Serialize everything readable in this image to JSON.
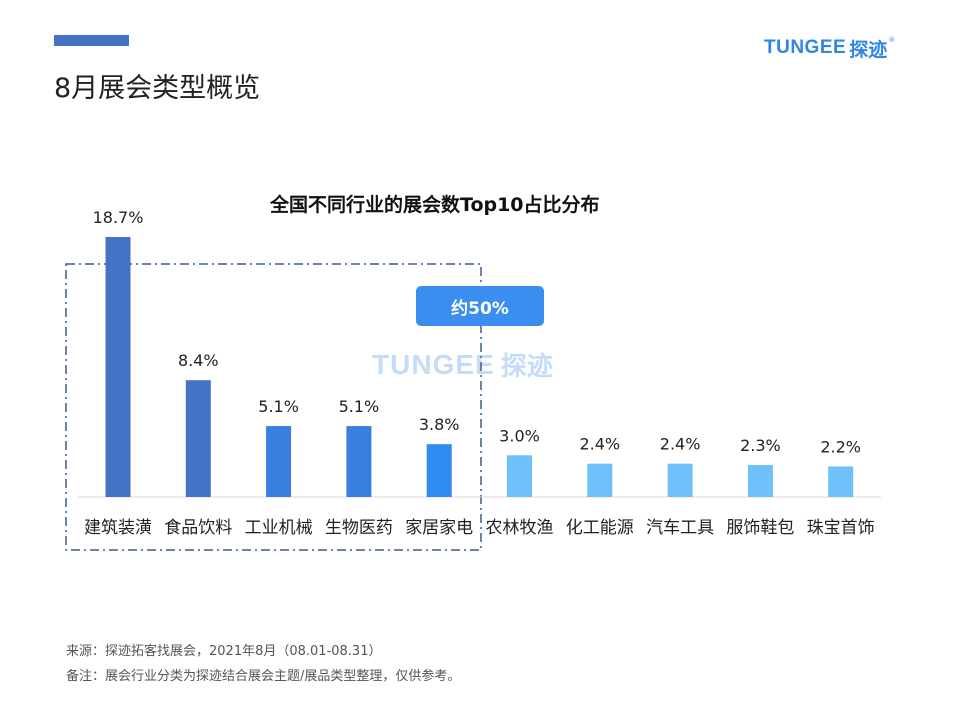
{
  "header": {
    "title": "8月展会类型概览",
    "logo_word": "TUNGEE",
    "logo_cn": "探迹",
    "logo_reg": "®"
  },
  "colors": {
    "accent_bar": "#4472c4",
    "bar_dark": "#4472c4",
    "bar_mid": "#3a8ef0",
    "bar_light": "#6ec1fb",
    "callout": "#3a8ef0"
  },
  "callout": {
    "label": "约50%"
  },
  "watermark": {
    "word": "TUNGEE",
    "cn": "探迹"
  },
  "chart_data": {
    "type": "bar",
    "title": "全国不同行业的展会数Top10占比分布",
    "categories": [
      "建筑装潢",
      "食品饮料",
      "工业机械",
      "生物医药",
      "家居家电",
      "农林牧渔",
      "化工能源",
      "汽车工具",
      "服饰鞋包",
      "珠宝首饰"
    ],
    "values": [
      18.7,
      8.4,
      5.1,
      5.1,
      3.8,
      3.0,
      2.4,
      2.4,
      2.3,
      2.2
    ],
    "data_labels": [
      "18.7%",
      "8.4%",
      "5.1%",
      "5.1%",
      "3.8%",
      "3.0%",
      "2.4%",
      "2.4%",
      "2.3%",
      "2.2%"
    ],
    "unit": "%",
    "ylim": [
      0,
      20
    ],
    "bar_colors": [
      "#4472c4",
      "#4472c4",
      "#3a7fe0",
      "#3a7fe0",
      "#2f8af2",
      "#6ec1fb",
      "#6ec1fb",
      "#6ec1fb",
      "#6ec1fb",
      "#6ec1fb"
    ],
    "grid": false,
    "highlight_group": {
      "categories": [
        "建筑装潢",
        "食品饮料",
        "工业机械",
        "生物医药",
        "家居家电"
      ],
      "label": "约50%"
    }
  },
  "footnotes": {
    "source": "来源：探迹拓客找展会，2021年8月（08.01-08.31）",
    "note": "备注：展会行业分类为探迹结合展会主题/展品类型整理，仅供参考。"
  }
}
